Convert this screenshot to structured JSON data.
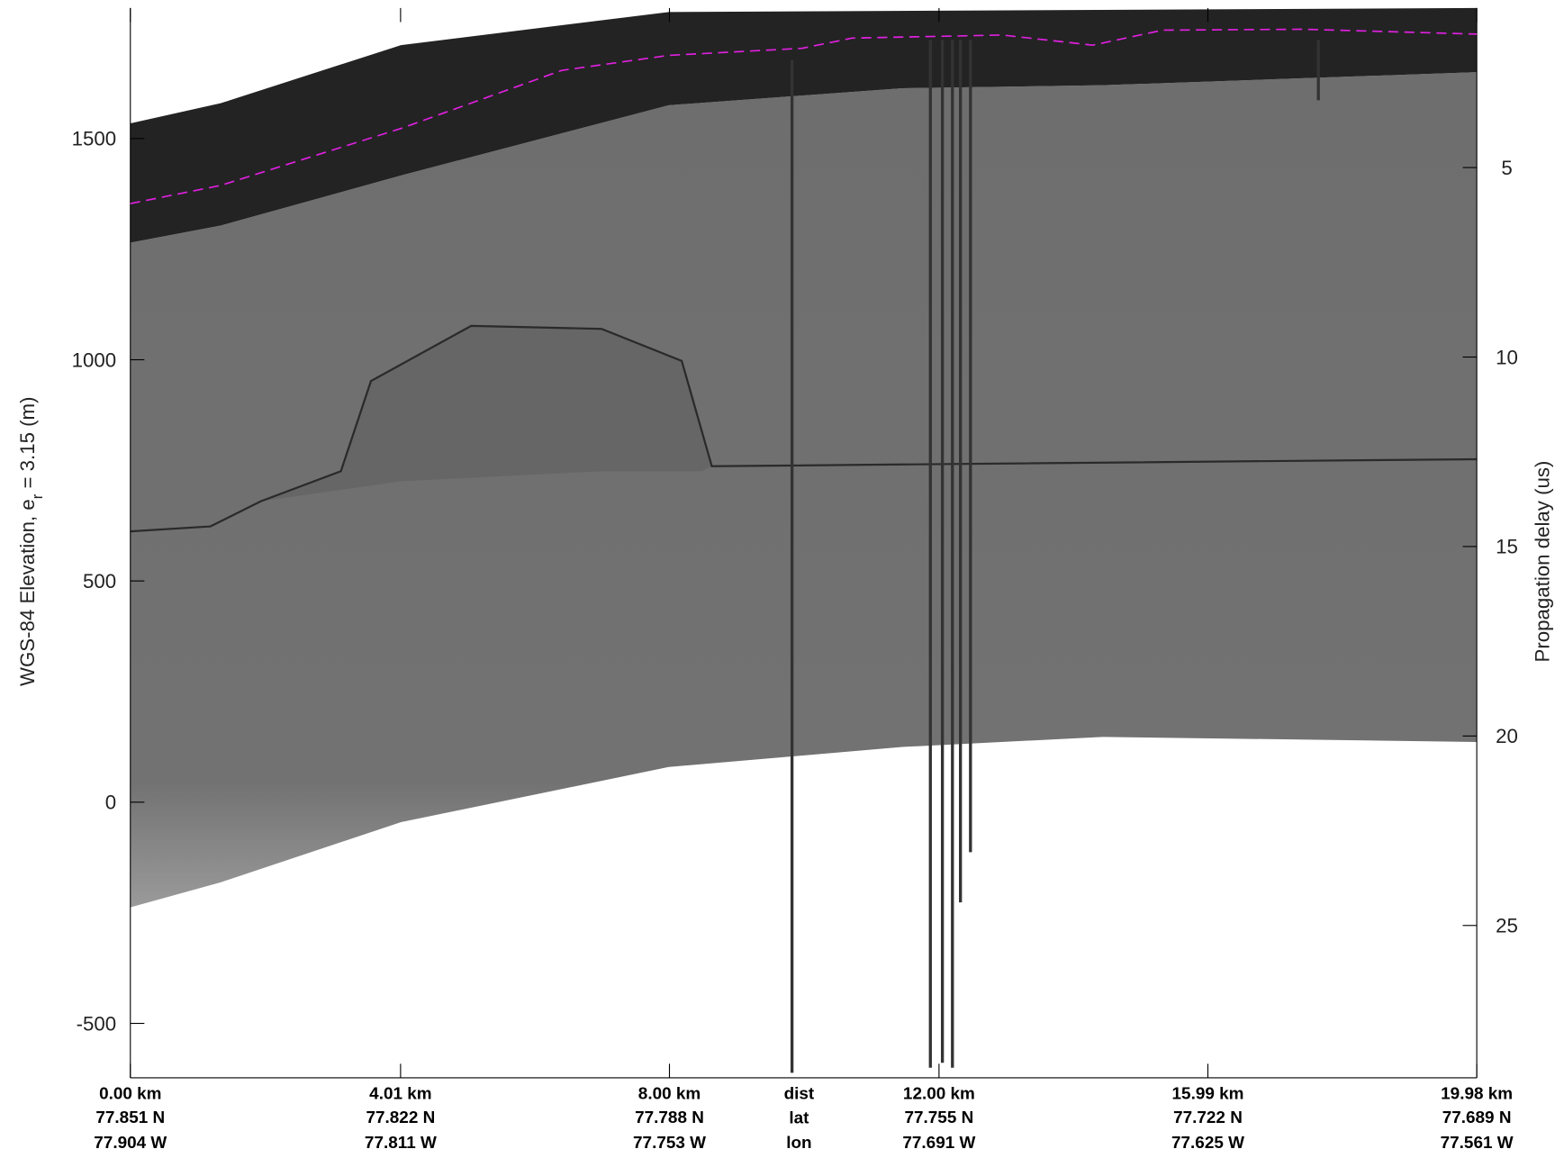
{
  "chart_data": {
    "type": "line",
    "ylabel": [
      "WGS-84 Elevation, e",
      "r",
      " = 3.15 (m)"
    ],
    "y2label": "Propagation delay (us)",
    "xlim": [
      0,
      19.98
    ],
    "xticks": [
      {
        "value": 0,
        "label": "0.00 km"
      },
      {
        "value": 4.01,
        "label": "4.01 km"
      },
      {
        "value": 8.0,
        "label": "8.00 km"
      },
      {
        "value": 12.0,
        "label": "12.00 km"
      },
      {
        "value": 15.99,
        "label": "15.99 km"
      },
      {
        "value": 19.98,
        "label": "19.98 km"
      }
    ],
    "lat_labels": [
      "77.851 N",
      "77.822 N",
      "77.788 N",
      "77.755 N",
      "77.722 N",
      "77.689 N"
    ],
    "lon_labels": [
      "77.904 W",
      "77.811 W",
      "77.753 W",
      "77.691 W",
      "77.625 W",
      "77.561 W"
    ],
    "row_labels": [
      "dist",
      "lat",
      "lon"
    ],
    "ylim": [
      -623,
      1795
    ],
    "yticks": [
      -500,
      0,
      500,
      1000,
      1500
    ],
    "y2lim": [
      29.02,
      0.79
    ],
    "y2ticks": [
      5,
      10,
      15,
      20,
      25
    ],
    "x": [
      0,
      1.34,
      4.02,
      6.4,
      7.99,
      9.97,
      10.71,
      12.94,
      14.28,
      15.32,
      17.41,
      19.98
    ],
    "series": [
      {
        "color": "#e020e0",
        "dashed": true,
        "values": [
          1353,
          1394,
          1523,
          1654,
          1688,
          1704,
          1727,
          1734,
          1711,
          1745,
          1747,
          1736
        ]
      }
    ]
  }
}
